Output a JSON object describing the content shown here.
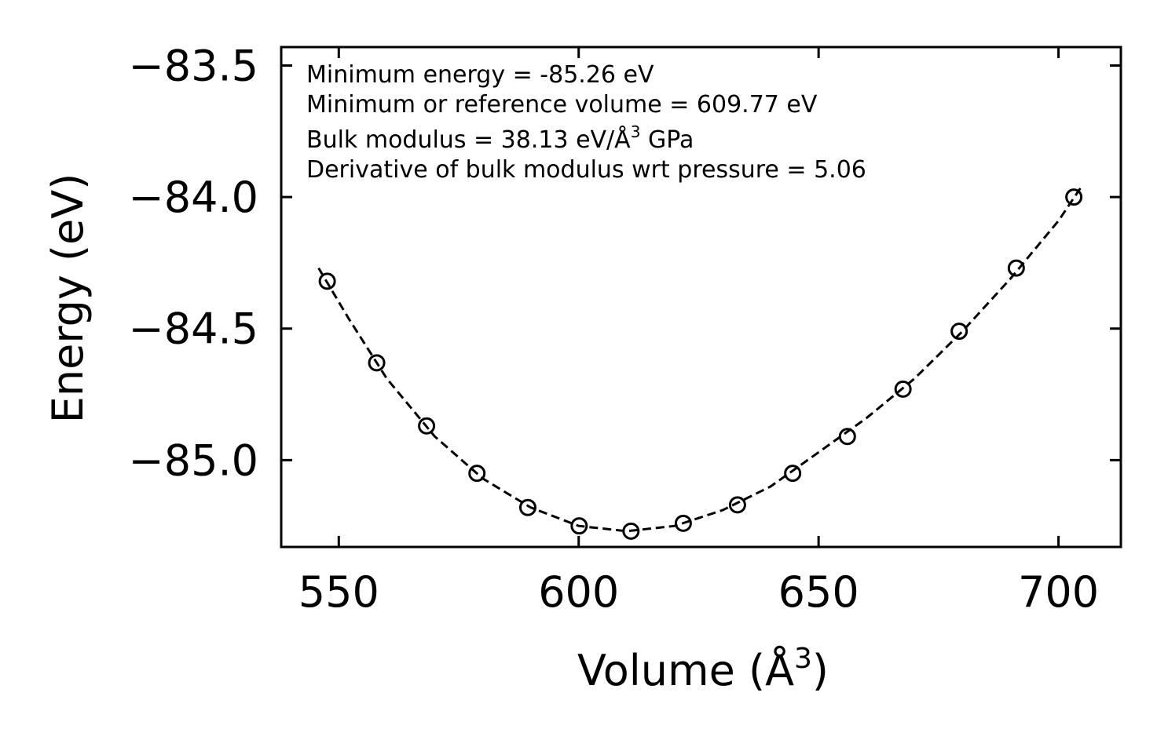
{
  "chart_data": {
    "type": "scatter",
    "title": "",
    "xlabel": "Volume (Å",
    "xlabel_sup": "3",
    "xlabel_end": ")",
    "ylabel": "Energy (eV)",
    "xlim": [
      538,
      713
    ],
    "ylim": [
      -85.33,
      -83.43
    ],
    "xticks": [
      550,
      600,
      650,
      700
    ],
    "xtick_labels": [
      "550",
      "600",
      "650",
      "700"
    ],
    "yticks": [
      -83.5,
      -84.0,
      -84.5,
      -85.0
    ],
    "ytick_labels": [
      "−83.5",
      "−84.0",
      "−84.5",
      "−85.0"
    ],
    "series": [
      {
        "name": "data",
        "style": "open-circle",
        "x": [
          547.6,
          557.9,
          568.3,
          578.8,
          589.4,
          600.1,
          610.9,
          621.8,
          633.1,
          644.6,
          656.0,
          667.6,
          679.3,
          691.2,
          703.2
        ],
        "y": [
          -84.32,
          -84.63,
          -84.87,
          -85.05,
          -85.18,
          -85.25,
          -85.27,
          -85.24,
          -85.17,
          -85.05,
          -84.91,
          -84.73,
          -84.51,
          -84.27,
          -84.0
        ]
      },
      {
        "name": "fit",
        "style": "dashed-line",
        "x": [
          545.8,
          552,
          560,
          570,
          580,
          590,
          600,
          610,
          620,
          630,
          640,
          650,
          660,
          670,
          680,
          690,
          700,
          704.8
        ],
        "y": [
          -84.27,
          -84.46,
          -84.69,
          -84.91,
          -85.07,
          -85.18,
          -85.25,
          -85.27,
          -85.25,
          -85.19,
          -85.1,
          -84.97,
          -84.84,
          -84.69,
          -84.51,
          -84.31,
          -84.09,
          -83.96
        ]
      }
    ],
    "annotations": [
      {
        "pre": "Minimum energy = -85.26 eV",
        "sup": "",
        "post": ""
      },
      {
        "pre": "Minimum or reference volume = 609.77 eV",
        "sup": "",
        "post": ""
      },
      {
        "pre": "Bulk modulus = 38.13 eV/Å",
        "sup": "3",
        "post": " GPa"
      },
      {
        "pre": "Derivative of bulk modulus wrt pressure = 5.06",
        "sup": "",
        "post": ""
      }
    ],
    "grid": false,
    "legend": "none"
  }
}
